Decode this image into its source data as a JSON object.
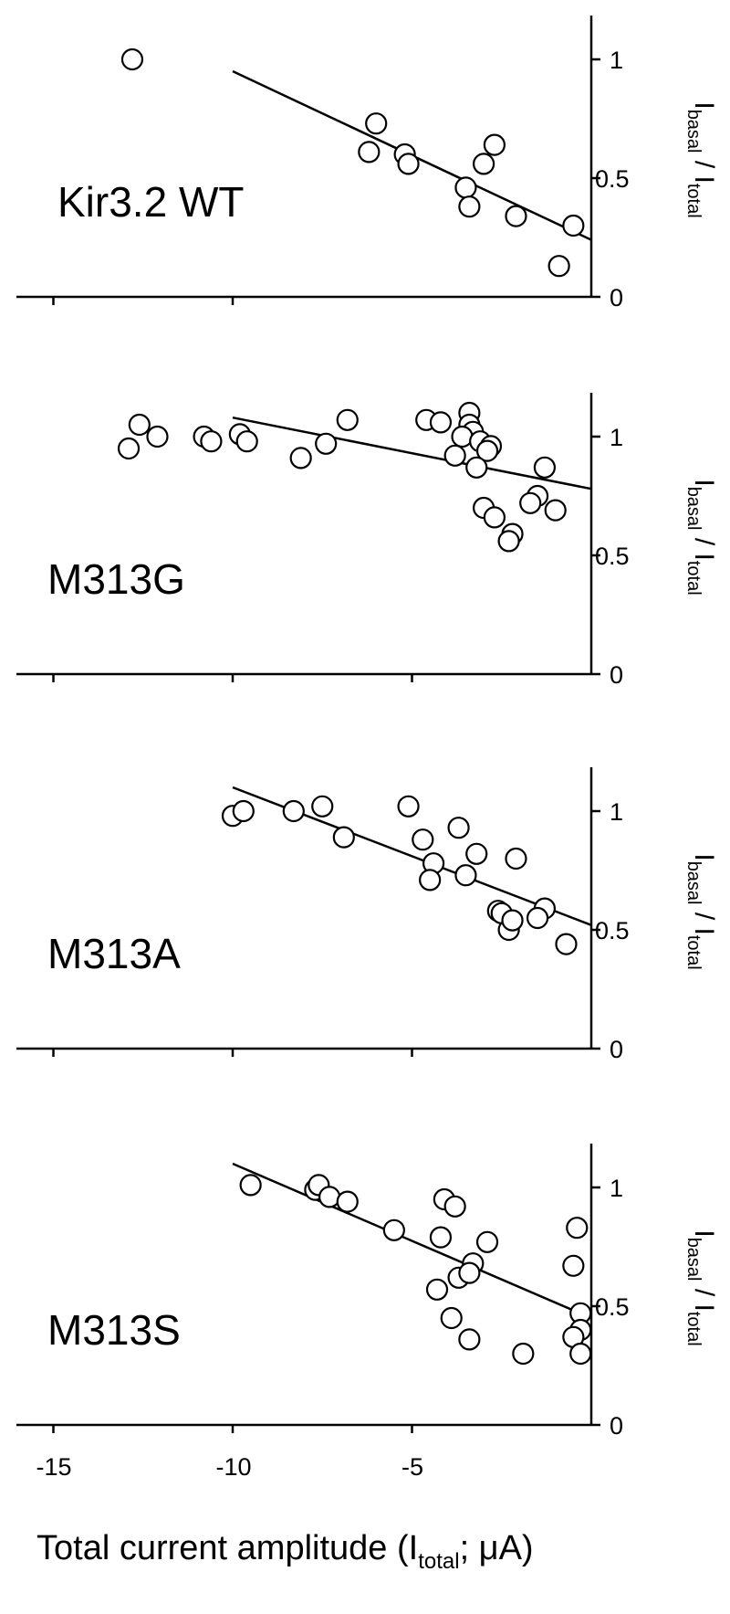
{
  "chart_data": [
    {
      "type": "scatter",
      "panel_label": "Kir3.2 WT",
      "ylabel": {
        "main_a": "I",
        "sub_a": "basal",
        "sep": " / ",
        "main_b": "I",
        "sub_b": "total"
      },
      "xlim": [
        -17,
        0
      ],
      "ylim": [
        0,
        1.2
      ],
      "yticks": [
        0,
        0.5,
        1
      ],
      "ytick_labels": [
        "0",
        "0.5",
        "1"
      ],
      "fit": {
        "x": [
          -10,
          0
        ],
        "y": [
          0.95,
          0.24
        ]
      },
      "points": [
        {
          "x": -12.8,
          "y": 1.0
        },
        {
          "x": -6.0,
          "y": 0.73
        },
        {
          "x": -6.2,
          "y": 0.61
        },
        {
          "x": -5.2,
          "y": 0.6
        },
        {
          "x": -5.1,
          "y": 0.56
        },
        {
          "x": -2.7,
          "y": 0.64
        },
        {
          "x": -3.0,
          "y": 0.56
        },
        {
          "x": -3.5,
          "y": 0.46
        },
        {
          "x": -3.4,
          "y": 0.38
        },
        {
          "x": -2.1,
          "y": 0.34
        },
        {
          "x": -0.5,
          "y": 0.3
        },
        {
          "x": -0.9,
          "y": 0.13
        }
      ]
    },
    {
      "type": "scatter",
      "panel_label": "M313G",
      "ylabel": {
        "main_a": "I",
        "sub_a": "basal",
        "sep": " / ",
        "main_b": "I",
        "sub_b": "total"
      },
      "xlim": [
        -17,
        0
      ],
      "ylim": [
        0,
        1.2
      ],
      "yticks": [
        0,
        0.5,
        1
      ],
      "ytick_labels": [
        "0",
        "0.5",
        "1"
      ],
      "fit": {
        "x": [
          -10,
          0
        ],
        "y": [
          1.08,
          0.78
        ]
      },
      "points": [
        {
          "x": -12.9,
          "y": 0.95
        },
        {
          "x": -12.6,
          "y": 1.05
        },
        {
          "x": -12.1,
          "y": 1.0
        },
        {
          "x": -10.8,
          "y": 1.0
        },
        {
          "x": -10.6,
          "y": 0.98
        },
        {
          "x": -9.8,
          "y": 1.01
        },
        {
          "x": -9.6,
          "y": 0.98
        },
        {
          "x": -8.1,
          "y": 0.91
        },
        {
          "x": -7.4,
          "y": 0.97
        },
        {
          "x": -6.8,
          "y": 1.07
        },
        {
          "x": -4.6,
          "y": 1.07
        },
        {
          "x": -4.2,
          "y": 1.06
        },
        {
          "x": -3.4,
          "y": 1.1
        },
        {
          "x": -3.4,
          "y": 1.05
        },
        {
          "x": -3.3,
          "y": 1.02
        },
        {
          "x": -3.6,
          "y": 1.0
        },
        {
          "x": -3.1,
          "y": 0.98
        },
        {
          "x": -2.8,
          "y": 0.96
        },
        {
          "x": -2.9,
          "y": 0.94
        },
        {
          "x": -3.8,
          "y": 0.92
        },
        {
          "x": -3.2,
          "y": 0.87
        },
        {
          "x": -1.3,
          "y": 0.87
        },
        {
          "x": -1.5,
          "y": 0.75
        },
        {
          "x": -1.7,
          "y": 0.72
        },
        {
          "x": -1.0,
          "y": 0.69
        },
        {
          "x": -3.0,
          "y": 0.7
        },
        {
          "x": -2.7,
          "y": 0.66
        },
        {
          "x": -2.2,
          "y": 0.59
        },
        {
          "x": -2.3,
          "y": 0.56
        }
      ]
    },
    {
      "type": "scatter",
      "panel_label": "M313A",
      "ylabel": {
        "main_a": "I",
        "sub_a": "basal",
        "sep": " / ",
        "main_b": "I",
        "sub_b": "total"
      },
      "xlim": [
        -17,
        0
      ],
      "ylim": [
        0,
        1.2
      ],
      "yticks": [
        0,
        0.5,
        1
      ],
      "ytick_labels": [
        "0",
        "0.5",
        "1"
      ],
      "fit": {
        "x": [
          -10,
          0
        ],
        "y": [
          1.1,
          0.52
        ]
      },
      "points": [
        {
          "x": -10.0,
          "y": 0.98
        },
        {
          "x": -9.7,
          "y": 1.0
        },
        {
          "x": -8.3,
          "y": 1.0
        },
        {
          "x": -7.5,
          "y": 1.02
        },
        {
          "x": -6.9,
          "y": 0.89
        },
        {
          "x": -5.1,
          "y": 1.02
        },
        {
          "x": -4.7,
          "y": 0.88
        },
        {
          "x": -3.7,
          "y": 0.93
        },
        {
          "x": -4.4,
          "y": 0.78
        },
        {
          "x": -4.5,
          "y": 0.71
        },
        {
          "x": -3.2,
          "y": 0.82
        },
        {
          "x": -3.5,
          "y": 0.73
        },
        {
          "x": -2.1,
          "y": 0.8
        },
        {
          "x": -2.6,
          "y": 0.58
        },
        {
          "x": -2.5,
          "y": 0.57
        },
        {
          "x": -2.3,
          "y": 0.5
        },
        {
          "x": -2.2,
          "y": 0.54
        },
        {
          "x": -1.3,
          "y": 0.59
        },
        {
          "x": -1.5,
          "y": 0.55
        },
        {
          "x": -0.7,
          "y": 0.44
        }
      ]
    },
    {
      "type": "scatter",
      "panel_label": "M313S",
      "ylabel": {
        "main_a": "I",
        "sub_a": "basal",
        "sep": " / ",
        "main_b": "I",
        "sub_b": "total"
      },
      "xlim": [
        -17,
        0
      ],
      "ylim": [
        0,
        1.2
      ],
      "yticks": [
        0,
        0.5,
        1
      ],
      "ytick_labels": [
        "0",
        "0.5",
        "1"
      ],
      "fit": {
        "x": [
          -10,
          0
        ],
        "y": [
          1.1,
          0.45
        ]
      },
      "points": [
        {
          "x": -9.5,
          "y": 1.01
        },
        {
          "x": -7.7,
          "y": 0.99
        },
        {
          "x": -7.6,
          "y": 1.01
        },
        {
          "x": -7.3,
          "y": 0.96
        },
        {
          "x": -6.8,
          "y": 0.94
        },
        {
          "x": -5.5,
          "y": 0.82
        },
        {
          "x": -4.1,
          "y": 0.95
        },
        {
          "x": -3.8,
          "y": 0.92
        },
        {
          "x": -4.2,
          "y": 0.79
        },
        {
          "x": -2.9,
          "y": 0.77
        },
        {
          "x": -3.3,
          "y": 0.68
        },
        {
          "x": -3.7,
          "y": 0.62
        },
        {
          "x": -3.4,
          "y": 0.64
        },
        {
          "x": -4.3,
          "y": 0.57
        },
        {
          "x": -3.9,
          "y": 0.45
        },
        {
          "x": -3.4,
          "y": 0.36
        },
        {
          "x": -1.9,
          "y": 0.3
        },
        {
          "x": -0.4,
          "y": 0.83
        },
        {
          "x": -0.5,
          "y": 0.67
        },
        {
          "x": -0.3,
          "y": 0.47
        },
        {
          "x": -0.3,
          "y": 0.4
        },
        {
          "x": -0.5,
          "y": 0.37
        },
        {
          "x": -0.3,
          "y": 0.3
        }
      ]
    }
  ],
  "x_axis": {
    "ticks": [
      -15,
      -10,
      -5
    ],
    "tick_labels": [
      "-15",
      "-10",
      "-5"
    ],
    "label": {
      "prefix": "Total current amplitude (I",
      "sub": "total",
      "suffix": "; μA)"
    }
  }
}
